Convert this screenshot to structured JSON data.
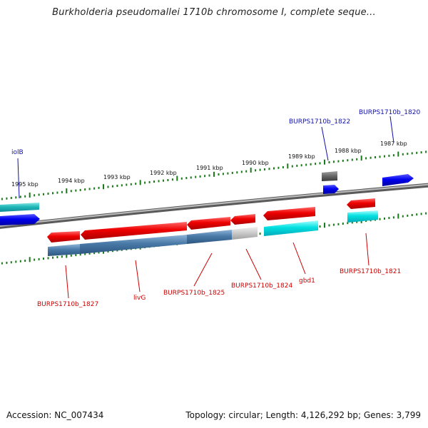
{
  "title": "Burkholderia pseudomallei 1710b chromosome I, complete seque...",
  "footer": {
    "accession": "Accession: NC_007434",
    "topology": "Topology: circular; Length: 4,126,292 bp; Genes: 3,799"
  },
  "scale_labels": [
    "1995 kbp",
    "1994 kbp",
    "1993 kbp",
    "1992 kbp",
    "1991 kbp",
    "1990 kbp",
    "1989 kbp",
    "1988 kbp",
    "1987 kbp"
  ],
  "gene_labels": {
    "iolB": "iolB",
    "b1822": "BURPS1710b_1822",
    "b1820": "BURPS1710b_1820",
    "b1827": "BURPS1710b_1827",
    "livG": "livG",
    "b1825": "BURPS1710b_1825",
    "b1824": "BURPS1710b_1824",
    "gbd1": "gbd1",
    "b1821": "BURPS1710b_1821"
  },
  "colors": {
    "backbone": "#8a8a8a",
    "forward_gene": "#0000ee",
    "forward_cds": "#00c8c8",
    "reverse_gene": "#ee0000",
    "reverse_cds": "#3f6f9f",
    "reverse_cds_light": "#c8c8c8",
    "tick": "#1a7a1a",
    "label_forward": "#1010b0",
    "label_reverse": "#cc0000"
  }
}
